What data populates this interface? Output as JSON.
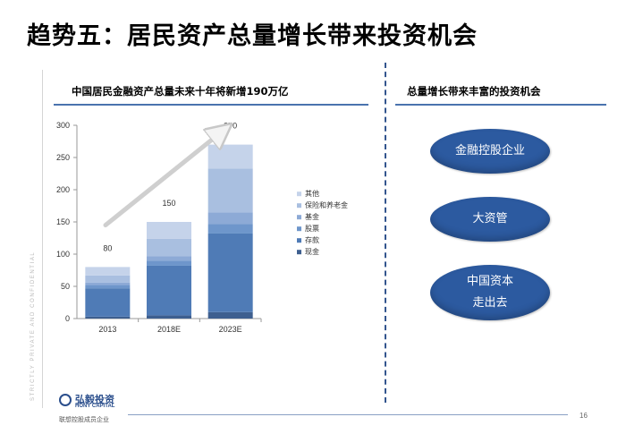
{
  "title": "趋势五：居民资产总量增长带来投资机会",
  "side_text": "STRICTLY PRIVATE AND CONFIDENTIAL",
  "left_heading": "中国居民金融资产总量未来十年将新增190万亿",
  "right_heading": "总量增长带来丰富的投资机会",
  "opportunities": [
    {
      "lines": [
        "金融控股企业"
      ]
    },
    {
      "lines": [
        "大资管"
      ]
    },
    {
      "lines": [
        "中国资本",
        "走出去"
      ]
    }
  ],
  "logo": {
    "cn": "弘毅投资",
    "en": "HONY CAPITAL",
    "sub": "联想控股成员企业"
  },
  "page_number": "16",
  "colors": {
    "accent": "#2c5aa0",
    "divider": "#33558e"
  },
  "chart_data": {
    "type": "bar",
    "stacked": true,
    "categories": [
      "2013",
      "2018E",
      "2023E"
    ],
    "totals": [
      80,
      150,
      270
    ],
    "ylim": [
      0,
      300
    ],
    "yticks": [
      0,
      50,
      100,
      150,
      200,
      250,
      300
    ],
    "grid": false,
    "legend_position": "right",
    "series": [
      {
        "name": "现金",
        "color": "#3e5f8f",
        "values": [
          3,
          5,
          10
        ]
      },
      {
        "name": "存款",
        "color": "#4f7bb6",
        "values": [
          44,
          77,
          122
        ]
      },
      {
        "name": "股票",
        "color": "#6e96cb",
        "values": [
          5,
          8,
          15
        ]
      },
      {
        "name": "基金",
        "color": "#8daad6",
        "values": [
          4,
          7,
          18
        ]
      },
      {
        "name": "保险和养老金",
        "color": "#a9bfe0",
        "values": [
          11,
          27,
          68
        ]
      },
      {
        "name": "其他",
        "color": "#c5d3ea",
        "values": [
          13,
          26,
          37
        ]
      }
    ],
    "legend_order": [
      "其他",
      "保险和养老金",
      "基金",
      "股票",
      "存款",
      "现金"
    ]
  }
}
